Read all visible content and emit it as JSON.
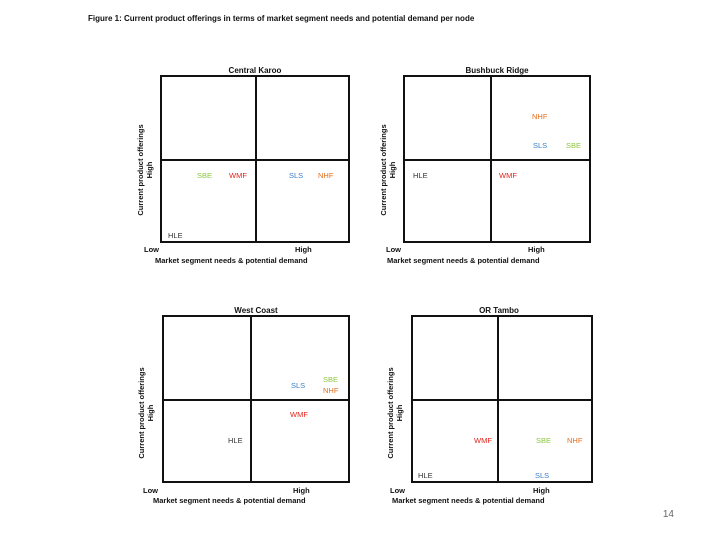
{
  "figure_title": "Figure 1: Current product offerings in terms of market segment needs and potential demand per node",
  "axis": {
    "x_title": "Market segment needs & potential demand",
    "y_title_line1": "Current product offerings",
    "y_title_line2": "High",
    "low": "Low",
    "high": "High"
  },
  "colors": {
    "SBE": "#8cc63f",
    "WMF": "#e3231b",
    "SLS": "#3a7ec7",
    "NHF": "#e36c1b",
    "HLE": "#333333"
  },
  "panels": [
    {
      "title": "Central Karoo",
      "codes": {
        "sbe": "SBE",
        "wmf": "WMF",
        "sls": "SLS",
        "nhf": "NHF",
        "hle": "HLE"
      }
    },
    {
      "title": "Bushbuck Ridge",
      "codes": {
        "nhf": "NHF",
        "sls": "SLS",
        "sbe": "SBE",
        "hle": "HLE",
        "wmf": "WMF"
      }
    },
    {
      "title": "West Coast",
      "codes": {
        "sls": "SLS",
        "sbe": "SBE",
        "nhf": "NHF",
        "wmf": "WMF",
        "hle": "HLE"
      }
    },
    {
      "title": "OR Tambo",
      "codes": {
        "wmf": "WMF",
        "sbe": "SBE",
        "nhf": "NHF",
        "hle": "HLE",
        "sls": "SLS"
      }
    }
  ],
  "page_number": "14"
}
